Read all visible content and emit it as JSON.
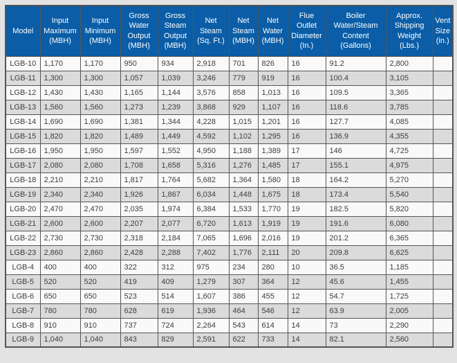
{
  "colors": {
    "page_bg": "#E3E3E3",
    "header_bg": "#0A5DA6",
    "header_text": "#FFFFFF",
    "row_light": "#F9F9F9",
    "row_dark": "#DBDBDB",
    "border": "#555555",
    "text": "#3D3D3D"
  },
  "table": {
    "columns": [
      "Model",
      "Input Maximum (MBH)",
      "Input Minimum (MBH)",
      "Gross Water Output (MBH)",
      "Gross Steam Output (MBH)",
      "Net Steam (Sq. Ft.)",
      "Net Steam (MBH)",
      "Net Water (MBH)",
      "Flue Outlet Diameter (In.)",
      "Boiler Water/Steam Content (Gallons)",
      "Approx. Shipping Weight (Lbs.)",
      "Vent Size (in.)"
    ],
    "rows": [
      {
        "cells": [
          "LGB-10",
          "1,170",
          "1,170",
          "950",
          "934",
          "2,918",
          "701",
          "826",
          "16",
          "91.2",
          "2,800",
          ""
        ]
      },
      {
        "cells": [
          "LGB-11",
          "1,300",
          "1,300",
          "1,057",
          "1,039",
          "3,246",
          "779",
          "919",
          "16",
          "100.4",
          "3,105",
          ""
        ]
      },
      {
        "cells": [
          "LGB-12",
          "1,430",
          "1,430",
          "1,165",
          "1,144",
          "3,576",
          "858",
          "1,013",
          "16",
          "109.5",
          "3,365",
          ""
        ]
      },
      {
        "cells": [
          "LGB-13",
          "1,560",
          "1,560",
          "1,273",
          "1,239",
          "3,868",
          "929",
          "1,107",
          "16",
          "118.6",
          "3,785",
          ""
        ]
      },
      {
        "cells": [
          "LGB-14",
          "1,690",
          "1,690",
          "1,381",
          "1,344",
          "4,228",
          "1,015",
          "1,201",
          "16",
          "127.7",
          "4,085",
          ""
        ]
      },
      {
        "cells": [
          "LGB-15",
          "1,820",
          "1,820",
          "1,489",
          "1,449",
          "4,592",
          "1,102",
          "1,295",
          "16",
          "136.9",
          "4,355",
          ""
        ]
      },
      {
        "cells": [
          "LGB-16",
          "1,950",
          "1,950",
          "1,597",
          "1,552",
          "4,950",
          "1,188",
          "1,389",
          "17",
          "146",
          "4,725",
          ""
        ]
      },
      {
        "cells": [
          "LGB-17",
          "2,080",
          "2,080",
          "1,708",
          "1,658",
          "5,316",
          "1,276",
          "1,485",
          "17",
          "155.1",
          "4,975",
          ""
        ]
      },
      {
        "cells": [
          "LGB-18",
          "2,210",
          "2,210",
          "1,817",
          "1,764",
          "5,682",
          "1,364",
          "1,580",
          "18",
          "164.2",
          "5,270",
          ""
        ]
      },
      {
        "cells": [
          "LGB-19",
          "2,340",
          "2,340",
          "1,926",
          "1,867",
          "6,034",
          "1,448",
          "1,675",
          "18",
          "173.4",
          "5,540",
          ""
        ]
      },
      {
        "cells": [
          "LGB-20",
          "2,470",
          "2,470",
          "2,035",
          "1,974",
          "6,384",
          "1,533",
          "1,770",
          "19",
          "182.5",
          "5,820",
          ""
        ]
      },
      {
        "cells": [
          "LGB-21",
          "2,600",
          "2,600",
          "2,207",
          "2,077",
          "6,720",
          "1,613",
          "1,919",
          "19",
          "191.6",
          "6,080",
          ""
        ]
      },
      {
        "cells": [
          "LGB-22",
          "2,730",
          "2,730",
          "2,318",
          "2,184",
          "7,065",
          "1,696",
          "2,016",
          "19",
          "201.2",
          "6,365",
          ""
        ]
      },
      {
        "cells": [
          "LGB-23",
          "2,860",
          "2,860",
          "2,428",
          "2,288",
          "7,402",
          "1,776",
          "2,111",
          "20",
          "209.8",
          "6,625",
          ""
        ]
      },
      {
        "cells": [
          "LGB-4",
          "400",
          "400",
          "322",
          "312",
          "975",
          "234",
          "280",
          "10",
          "36.5",
          "1,185",
          ""
        ]
      },
      {
        "cells": [
          "LGB-5",
          "520",
          "520",
          "419",
          "409",
          "1,279",
          "307",
          "364",
          "12",
          "45.6",
          "1,455",
          ""
        ]
      },
      {
        "cells": [
          "LGB-6",
          "650",
          "650",
          "523",
          "514",
          "1,607",
          "386",
          "455",
          "12",
          "54.7",
          "1,725",
          ""
        ]
      },
      {
        "cells": [
          "LGB-7",
          "780",
          "780",
          "628",
          "619",
          "1,936",
          "464",
          "546",
          "12",
          "63.9",
          "2,005",
          ""
        ]
      },
      {
        "cells": [
          "LGB-8",
          "910",
          "910",
          "737",
          "724",
          "2,264",
          "543",
          "614",
          "14",
          "73",
          "2,290",
          ""
        ]
      },
      {
        "cells": [
          "LGB-9",
          "1,040",
          "1,040",
          "843",
          "829",
          "2,591",
          "622",
          "733",
          "14",
          "82.1",
          "2,560",
          ""
        ]
      }
    ]
  }
}
